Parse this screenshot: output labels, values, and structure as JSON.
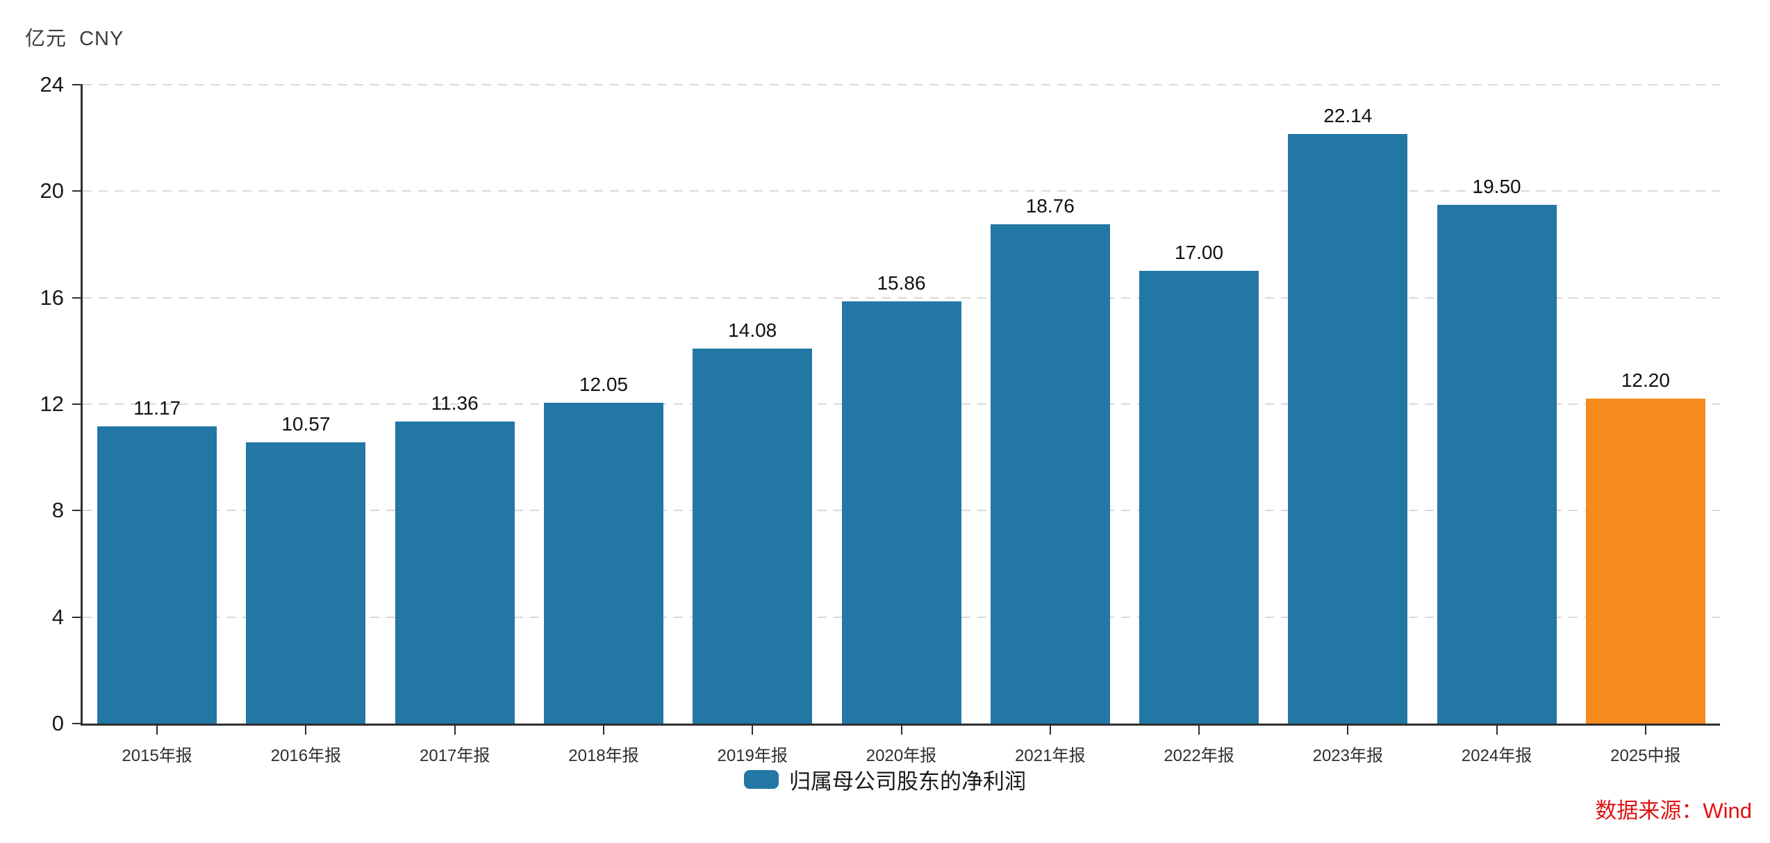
{
  "header": {
    "unit_label": "亿元  CNY"
  },
  "chart_data": {
    "type": "bar",
    "categories": [
      "2015年报",
      "2016年报",
      "2017年报",
      "2018年报",
      "2019年报",
      "2020年报",
      "2021年报",
      "2022年报",
      "2023年报",
      "2024年报",
      "2025中报"
    ],
    "values": [
      11.17,
      10.57,
      11.36,
      12.05,
      14.08,
      15.86,
      18.76,
      17.0,
      22.14,
      19.5,
      12.2
    ],
    "value_labels": [
      "11.17",
      "10.57",
      "11.36",
      "12.05",
      "14.08",
      "15.86",
      "18.76",
      "17.00",
      "22.14",
      "19.50",
      "12.20"
    ],
    "series_name": "归属母公司股东的净利润",
    "ylabel": "亿元 CNY",
    "ylim": [
      0,
      24
    ],
    "yticks": [
      0,
      4,
      8,
      12,
      16,
      20,
      24
    ],
    "grid": "horizontal-dashed",
    "legend_position": "bottom-center",
    "bar_color": "#2277a5",
    "highlight_color": "#f68a1c",
    "highlight_index": 10
  },
  "legend": {
    "label": "归属母公司股东的净利润",
    "swatch_color": "#2277a5"
  },
  "footer": {
    "source_label": "数据来源：Wind",
    "color": "#e01212"
  }
}
